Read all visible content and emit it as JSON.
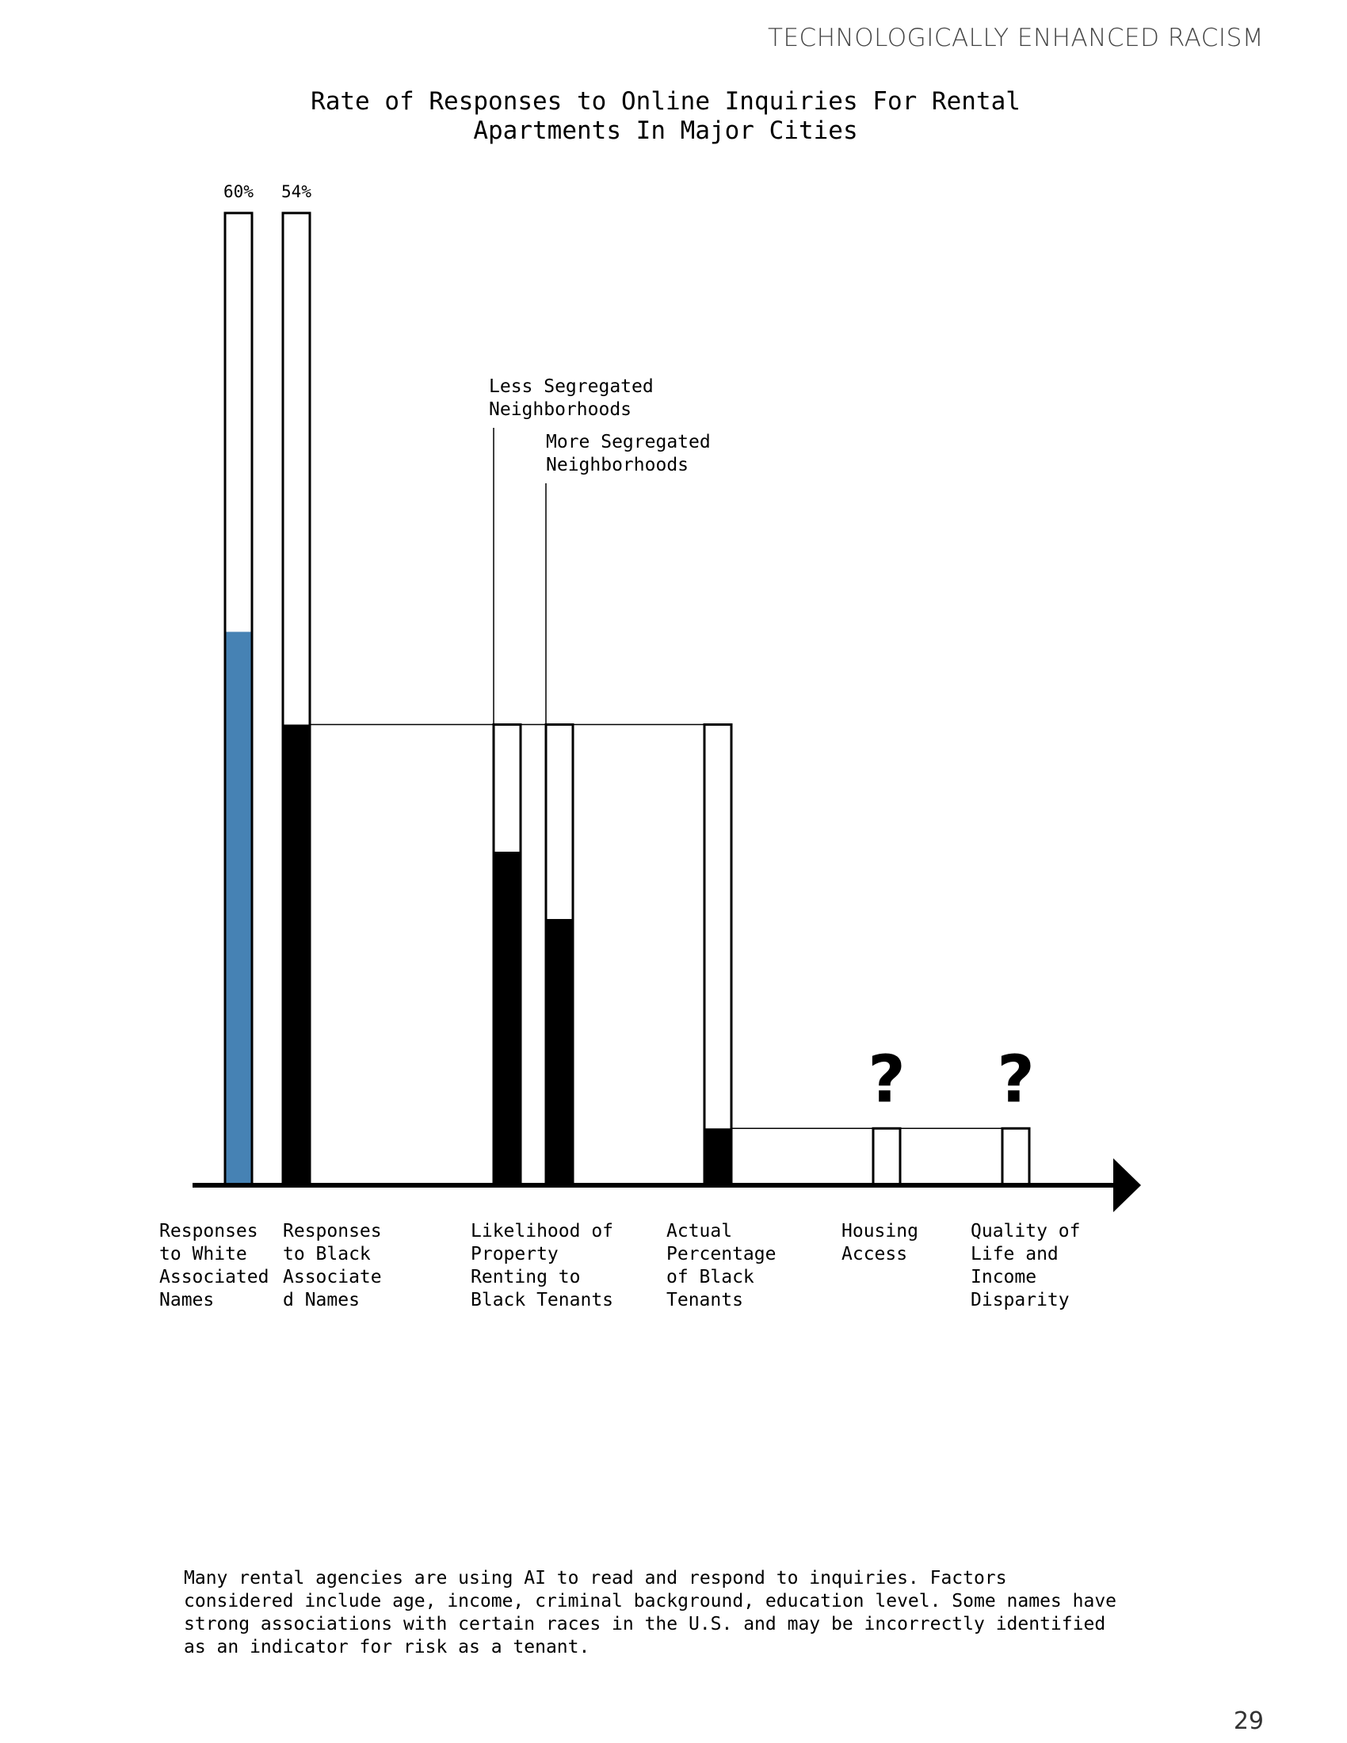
{
  "header": {
    "running_head": "TECHNOLOGICALLY ENHANCED RACISM"
  },
  "chart_data": {
    "type": "bar",
    "title": "Rate of Responses to Online Inquiries For Rental Apartments In Major Cities",
    "ylim": [
      0,
      66
    ],
    "colors": {
      "white_names": "#4682b4",
      "black_fill": "#000000",
      "outline": "#000000"
    },
    "bars": [
      {
        "id": "white",
        "category": "Responses to White Associated Names",
        "total": 65,
        "filled": 37,
        "fill_color": "#4682b4",
        "value_label": "60%"
      },
      {
        "id": "black",
        "category": "Responses to Black Associated Names",
        "total": 65,
        "filled": 30.8,
        "fill_color": "#000000",
        "value_label": "54%"
      },
      {
        "id": "less_seg",
        "category": "Likelihood of Property Renting to Black Tenants",
        "total": 30.8,
        "filled": 22.3,
        "fill_color": "#000000",
        "annotation": "Less Segregated Neighborhoods"
      },
      {
        "id": "more_seg",
        "category": "Likelihood of Property Renting to Black Tenants",
        "total": 30.8,
        "filled": 17.8,
        "fill_color": "#000000",
        "annotation": "More Segregated Neighborhoods"
      },
      {
        "id": "actual",
        "category": "Actual Percentage of Black Tenants",
        "total": 30.8,
        "filled": 3.8,
        "fill_color": "#000000"
      },
      {
        "id": "housing",
        "category": "Housing Access",
        "total": 3.8,
        "filled": 0,
        "fill_color": "#000000",
        "value_label": "?"
      },
      {
        "id": "quality",
        "category": "Quality of Life and Income Disparity",
        "total": 3.8,
        "filled": 0,
        "fill_color": "#000000",
        "value_label": "?"
      }
    ],
    "category_labels": [
      "Responses\nto White\nAssociated\nNames",
      "Responses\nto Black\nAssociate\nd Names",
      "Likelihood of\nProperty\nRenting to\nBlack Tenants",
      "Actual\nPercentage\nof Black\nTenants",
      "Housing\nAccess",
      "Quality of\nLife and\nIncome\nDisparity"
    ],
    "annotations": {
      "less_segregated": "Less Segregated\nNeighborhoods",
      "more_segregated": "More Segregated\nNeighborhoods"
    }
  },
  "caption": "Many rental agencies are using AI to read and respond to inquiries. Factors considered include age, income, criminal background, education level. Some names have strong associations with certain races in the U.S. and may be incorrectly identified as an indicator for risk as a tenant.",
  "page_number": "29"
}
